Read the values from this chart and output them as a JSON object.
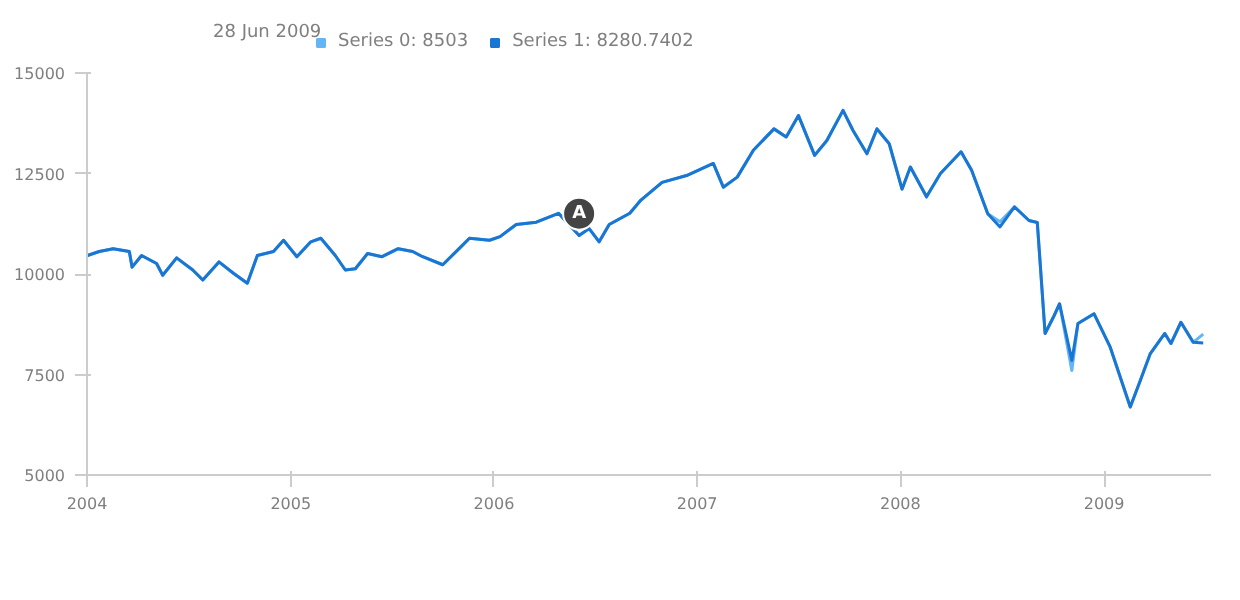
{
  "chart_data": {
    "type": "line",
    "legend_title": "28 Jun 2009",
    "legend": "top left",
    "grid": false,
    "marker": "none",
    "line_style": "solid",
    "x": [
      "2004-01-02",
      "2004-01-23",
      "2004-02-17",
      "2004-03-17",
      "2004-03-22",
      "2004-04-08",
      "2004-05-05",
      "2004-05-16",
      "2004-06-10",
      "2004-07-09",
      "2004-07-27",
      "2004-08-25",
      "2004-09-20",
      "2004-10-15",
      "2004-11-02",
      "2004-12-01",
      "2004-12-19",
      "2005-01-12",
      "2005-02-06",
      "2005-02-24",
      "2005-03-22",
      "2005-04-09",
      "2005-04-27",
      "2005-05-19",
      "2005-06-14",
      "2005-07-13",
      "2005-08-08",
      "2005-08-26",
      "2005-10-01",
      "2005-11-03",
      "2005-11-18",
      "2005-12-24",
      "2006-01-12",
      "2006-02-10",
      "2006-03-18",
      "2006-04-27",
      "2006-06-03",
      "2006-06-21",
      "2006-07-09",
      "2006-07-27",
      "2006-09-02",
      "2006-09-22",
      "2006-10-30",
      "2006-12-13",
      "2007-01-30",
      "2007-02-17",
      "2007-03-14",
      "2007-04-12",
      "2007-05-19",
      "2007-06-10",
      "2007-07-02",
      "2007-07-31",
      "2007-08-22",
      "2007-09-20",
      "2007-10-08",
      "2007-11-02",
      "2007-11-20",
      "2007-12-12",
      "2008-01-04",
      "2008-01-19",
      "2008-02-17",
      "2008-03-13",
      "2008-04-19",
      "2008-05-08",
      "2008-06-06",
      "2008-06-28",
      "2008-07-24",
      "2008-08-19",
      "2008-09-03",
      "2008-09-17",
      "2008-10-02",
      "2008-10-13",
      "2008-11-04",
      "2008-11-15",
      "2008-12-14",
      "2009-01-12",
      "2009-02-17",
      "2009-03-07",
      "2009-03-25",
      "2009-04-20",
      "2009-05-01",
      "2009-05-19",
      "2009-06-10",
      "2009-06-28"
    ],
    "series": [
      {
        "name": "Series 0: 8503",
        "color": "#64b5f6",
        "values": [
          10460,
          10560,
          10630,
          10560,
          10170,
          10460,
          10260,
          9970,
          10400,
          10100,
          9850,
          10300,
          10020,
          9770,
          10460,
          10560,
          10840,
          10430,
          10800,
          10890,
          10460,
          10100,
          10130,
          10510,
          10430,
          10630,
          10560,
          10430,
          10230,
          10680,
          10890,
          10840,
          10930,
          11230,
          11290,
          11510,
          10960,
          11130,
          10800,
          11230,
          11510,
          11840,
          12280,
          12450,
          12750,
          12160,
          12410,
          13080,
          13610,
          13410,
          13940,
          12950,
          13320,
          14070,
          13570,
          12990,
          13610,
          13240,
          12110,
          12660,
          11920,
          12500,
          13040,
          12580,
          11500,
          11300,
          11670,
          11330,
          11280,
          8520,
          8930,
          9260,
          7600,
          8770,
          9010,
          8180,
          6690,
          7350,
          8020,
          8520,
          8270,
          8800,
          8300,
          8503
        ]
      },
      {
        "name": "Series 1: 8280.7402",
        "color": "#1976d2",
        "values": [
          10460,
          10560,
          10630,
          10560,
          10170,
          10460,
          10260,
          9970,
          10400,
          10100,
          9850,
          10300,
          10020,
          9770,
          10460,
          10560,
          10840,
          10430,
          10800,
          10890,
          10460,
          10100,
          10130,
          10510,
          10430,
          10630,
          10560,
          10430,
          10230,
          10680,
          10890,
          10840,
          10930,
          11230,
          11290,
          11510,
          10960,
          11130,
          10800,
          11230,
          11510,
          11840,
          12280,
          12450,
          12750,
          12160,
          12410,
          13080,
          13610,
          13410,
          13940,
          12950,
          13320,
          14070,
          13570,
          12990,
          13610,
          13240,
          12110,
          12660,
          11920,
          12500,
          13040,
          12580,
          11500,
          11170,
          11670,
          11330,
          11280,
          8520,
          8930,
          9260,
          7850,
          8770,
          9010,
          8180,
          6690,
          7350,
          8020,
          8520,
          8270,
          8800,
          8300,
          8280.7402
        ]
      }
    ],
    "annotations": [
      {
        "text": "A",
        "x": "2006-06-03",
        "y": 11500
      }
    ],
    "xlim": [
      "2004-01-01",
      "2009-07-12"
    ],
    "xticks": [
      {
        "value": "2004-01-01",
        "label": "2004"
      },
      {
        "value": "2005-01-01",
        "label": "2005"
      },
      {
        "value": "2006-01-01",
        "label": "2006"
      },
      {
        "value": "2007-01-01",
        "label": "2007"
      },
      {
        "value": "2008-01-01",
        "label": "2008"
      },
      {
        "value": "2009-01-01",
        "label": "2009"
      }
    ],
    "ylim": [
      5000,
      15000
    ],
    "yticks": [
      5000,
      7500,
      10000,
      12500,
      15000
    ]
  }
}
